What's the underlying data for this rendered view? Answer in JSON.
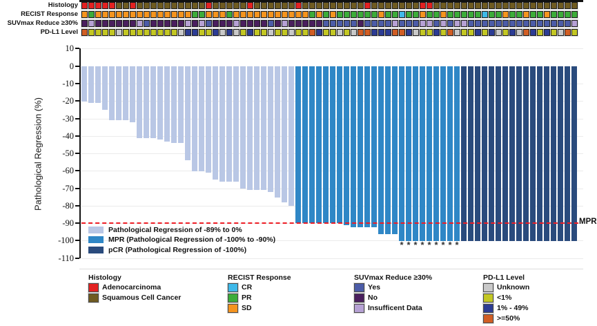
{
  "annotation_tracks": [
    {
      "id": "histology",
      "label": "Histology",
      "palette": {
        "A": "#e32222",
        "S": "#6f5b21"
      },
      "values": [
        "A",
        "A",
        "A",
        "A",
        "A",
        "S",
        "S",
        "A",
        "S",
        "S",
        "S",
        "S",
        "S",
        "S",
        "S",
        "S",
        "S",
        "S",
        "A",
        "S",
        "S",
        "S",
        "S",
        "S",
        "A",
        "S",
        "S",
        "S",
        "S",
        "S",
        "S",
        "A",
        "S",
        "S",
        "S",
        "S",
        "S",
        "S",
        "S",
        "S",
        "S",
        "A",
        "S",
        "S",
        "S",
        "S",
        "S",
        "S",
        "S",
        "A",
        "A",
        "S",
        "S",
        "S",
        "S",
        "S",
        "S",
        "S",
        "S",
        "S",
        "S",
        "S",
        "S",
        "S",
        "S",
        "S",
        "S",
        "S",
        "S",
        "S",
        "S",
        "S"
      ]
    },
    {
      "id": "recist",
      "label": "RECIST Response",
      "palette": {
        "SD": "#f5941f",
        "PR": "#3cac39",
        "CR": "#3fb9e9"
      },
      "values": [
        "SD",
        "PR",
        "SD",
        "SD",
        "SD",
        "SD",
        "SD",
        "SD",
        "SD",
        "SD",
        "SD",
        "SD",
        "SD",
        "SD",
        "SD",
        "SD",
        "PR",
        "PR",
        "SD",
        "SD",
        "SD",
        "PR",
        "SD",
        "SD",
        "SD",
        "SD",
        "SD",
        "SD",
        "SD",
        "SD",
        "SD",
        "SD",
        "SD",
        "PR",
        "SD",
        "PR",
        "SD",
        "PR",
        "PR",
        "PR",
        "PR",
        "PR",
        "PR",
        "SD",
        "PR",
        "PR",
        "CR",
        "PR",
        "PR",
        "SD",
        "PR",
        "PR",
        "SD",
        "PR",
        "PR",
        "PR",
        "PR",
        "PR",
        "CR",
        "PR",
        "PR",
        "SD",
        "PR",
        "PR",
        "SD",
        "PR",
        "PR",
        "SD",
        "PR",
        "PR",
        "PR",
        "PR"
      ]
    },
    {
      "id": "suvmax",
      "label": "SUVmax Reduce ≥30%",
      "palette": {
        "Y": "#4c5ca8",
        "N": "#4a1f5e",
        "I": "#b6a1d4"
      },
      "values": [
        "N",
        "I",
        "N",
        "N",
        "N",
        "N",
        "N",
        "N",
        "I",
        "Y",
        "N",
        "N",
        "N",
        "N",
        "N",
        "I",
        "N",
        "I",
        "Y",
        "N",
        "N",
        "N",
        "I",
        "N",
        "N",
        "N",
        "N",
        "Y",
        "N",
        "I",
        "N",
        "N",
        "N",
        "N",
        "N",
        "Y",
        "Y",
        "Y",
        "Y",
        "Y",
        "N",
        "Y",
        "Y",
        "Y",
        "Y",
        "I",
        "Y",
        "Y",
        "Y",
        "I",
        "I",
        "Y",
        "I",
        "Y",
        "I",
        "I",
        "Y",
        "Y",
        "Y",
        "Y",
        "Y",
        "Y",
        "Y",
        "Y",
        "Y",
        "Y",
        "Y",
        "Y",
        "Y",
        "Y",
        "Y",
        "I"
      ]
    },
    {
      "id": "pdl1",
      "label": "PD-L1 Level",
      "palette": {
        "U": "#c9c9c9",
        "L": "#c3c723",
        "M": "#2c3c94",
        "H": "#d15e24"
      },
      "values": [
        "H",
        "L",
        "L",
        "L",
        "L",
        "U",
        "L",
        "L",
        "L",
        "L",
        "L",
        "L",
        "L",
        "L",
        "U",
        "M",
        "M",
        "L",
        "L",
        "M",
        "U",
        "M",
        "U",
        "L",
        "M",
        "L",
        "L",
        "U",
        "L",
        "L",
        "U",
        "L",
        "L",
        "H",
        "M",
        "L",
        "L",
        "U",
        "L",
        "U",
        "H",
        "H",
        "M",
        "M",
        "M",
        "H",
        "H",
        "M",
        "U",
        "L",
        "L",
        "M",
        "L",
        "H",
        "U",
        "L",
        "L",
        "M",
        "L",
        "M",
        "U",
        "L",
        "M",
        "U",
        "H",
        "M",
        "L",
        "M",
        "L",
        "U",
        "H",
        "L"
      ]
    }
  ],
  "chart_data": {
    "type": "bar",
    "title": "",
    "xlabel": "",
    "ylabel": "Pathological Regression (%)",
    "ylim": [
      -110,
      10
    ],
    "yticks": [
      10,
      0,
      -10,
      -20,
      -30,
      -40,
      -50,
      -60,
      -70,
      -80,
      -90,
      -100,
      -110
    ],
    "grid": true,
    "n_patients": 72,
    "values": [
      -20,
      -21,
      -21,
      -25,
      -31,
      -31,
      -31,
      -32,
      -41,
      -41,
      -41,
      -42,
      -43,
      -44,
      -44,
      -54,
      -60,
      -60,
      -61,
      -65,
      -66,
      -66,
      -66,
      -70,
      -71,
      -71,
      -71,
      -72,
      -75,
      -78,
      -80,
      -90,
      -90,
      -90,
      -90,
      -90,
      -90,
      -90,
      -91,
      -92,
      -92,
      -92,
      -92,
      -96,
      -96,
      -96,
      -100,
      -100,
      -100,
      -100,
      -100,
      -100,
      -100,
      -100,
      -100,
      -100,
      -100,
      -100,
      -100,
      -100,
      -100,
      -100,
      -100,
      -100,
      -100,
      -100,
      -100,
      -100,
      -100,
      -100,
      -100,
      -100
    ],
    "groups": [
      "light",
      "light",
      "light",
      "light",
      "light",
      "light",
      "light",
      "light",
      "light",
      "light",
      "light",
      "light",
      "light",
      "light",
      "light",
      "light",
      "light",
      "light",
      "light",
      "light",
      "light",
      "light",
      "light",
      "light",
      "light",
      "light",
      "light",
      "light",
      "light",
      "light",
      "light",
      "mpr",
      "mpr",
      "mpr",
      "mpr",
      "mpr",
      "mpr",
      "mpr",
      "mpr",
      "mpr",
      "mpr",
      "mpr",
      "mpr",
      "mpr",
      "mpr",
      "mpr",
      "mpr",
      "mpr",
      "mpr",
      "mpr",
      "mpr",
      "mpr",
      "mpr",
      "mpr",
      "mpr",
      "pcr",
      "pcr",
      "pcr",
      "pcr",
      "pcr",
      "pcr",
      "pcr",
      "pcr",
      "pcr",
      "pcr",
      "pcr",
      "pcr",
      "pcr",
      "pcr",
      "pcr",
      "pcr",
      "pcr"
    ],
    "group_colors": {
      "light": "#b9c7e5",
      "mpr": "#2f87c6",
      "pcr": "#2a4b7d"
    },
    "reference_line": {
      "y": -90,
      "label": "MPR",
      "color": "#ed1c24",
      "style": "dashed"
    },
    "asterisk_columns": [
      47,
      48,
      49,
      50,
      51,
      52,
      53,
      54,
      55
    ],
    "asterisk_symbol": "*",
    "legend_position": "bottom-left-inside"
  },
  "plot_legend": {
    "items": [
      {
        "group": "light",
        "label": "Pathological Regression of -89% to 0%"
      },
      {
        "group": "mpr",
        "label": "MPR (Pathological Regression of -100% to -90%)"
      },
      {
        "group": "pcr",
        "label": "pCR (Pathological Regression of -100%)"
      }
    ]
  },
  "bottom_legends": [
    {
      "title": "Histology",
      "items": [
        {
          "color": "#e32222",
          "label": "Adenocarcinoma"
        },
        {
          "color": "#6f5b21",
          "label": "Squamous Cell Cancer"
        }
      ]
    },
    {
      "title": "RECIST Response",
      "items": [
        {
          "color": "#3fb9e9",
          "label": "CR"
        },
        {
          "color": "#3cac39",
          "label": "PR"
        },
        {
          "color": "#f5941f",
          "label": "SD"
        }
      ]
    },
    {
      "title": "SUVmax Reduce ≥30%",
      "items": [
        {
          "color": "#4c5ca8",
          "label": "Yes"
        },
        {
          "color": "#4a1f5e",
          "label": "No"
        },
        {
          "color": "#b6a1d4",
          "label": "Insufficent Data"
        }
      ]
    },
    {
      "title": "PD-L1 Level",
      "items": [
        {
          "color": "#c9c9c9",
          "label": "Unknown"
        },
        {
          "color": "#c3c723",
          "label": "<1%"
        },
        {
          "color": "#2c3c94",
          "label": "1% - 49%"
        },
        {
          "color": "#d15e24",
          "label": ">=50%"
        }
      ]
    }
  ]
}
